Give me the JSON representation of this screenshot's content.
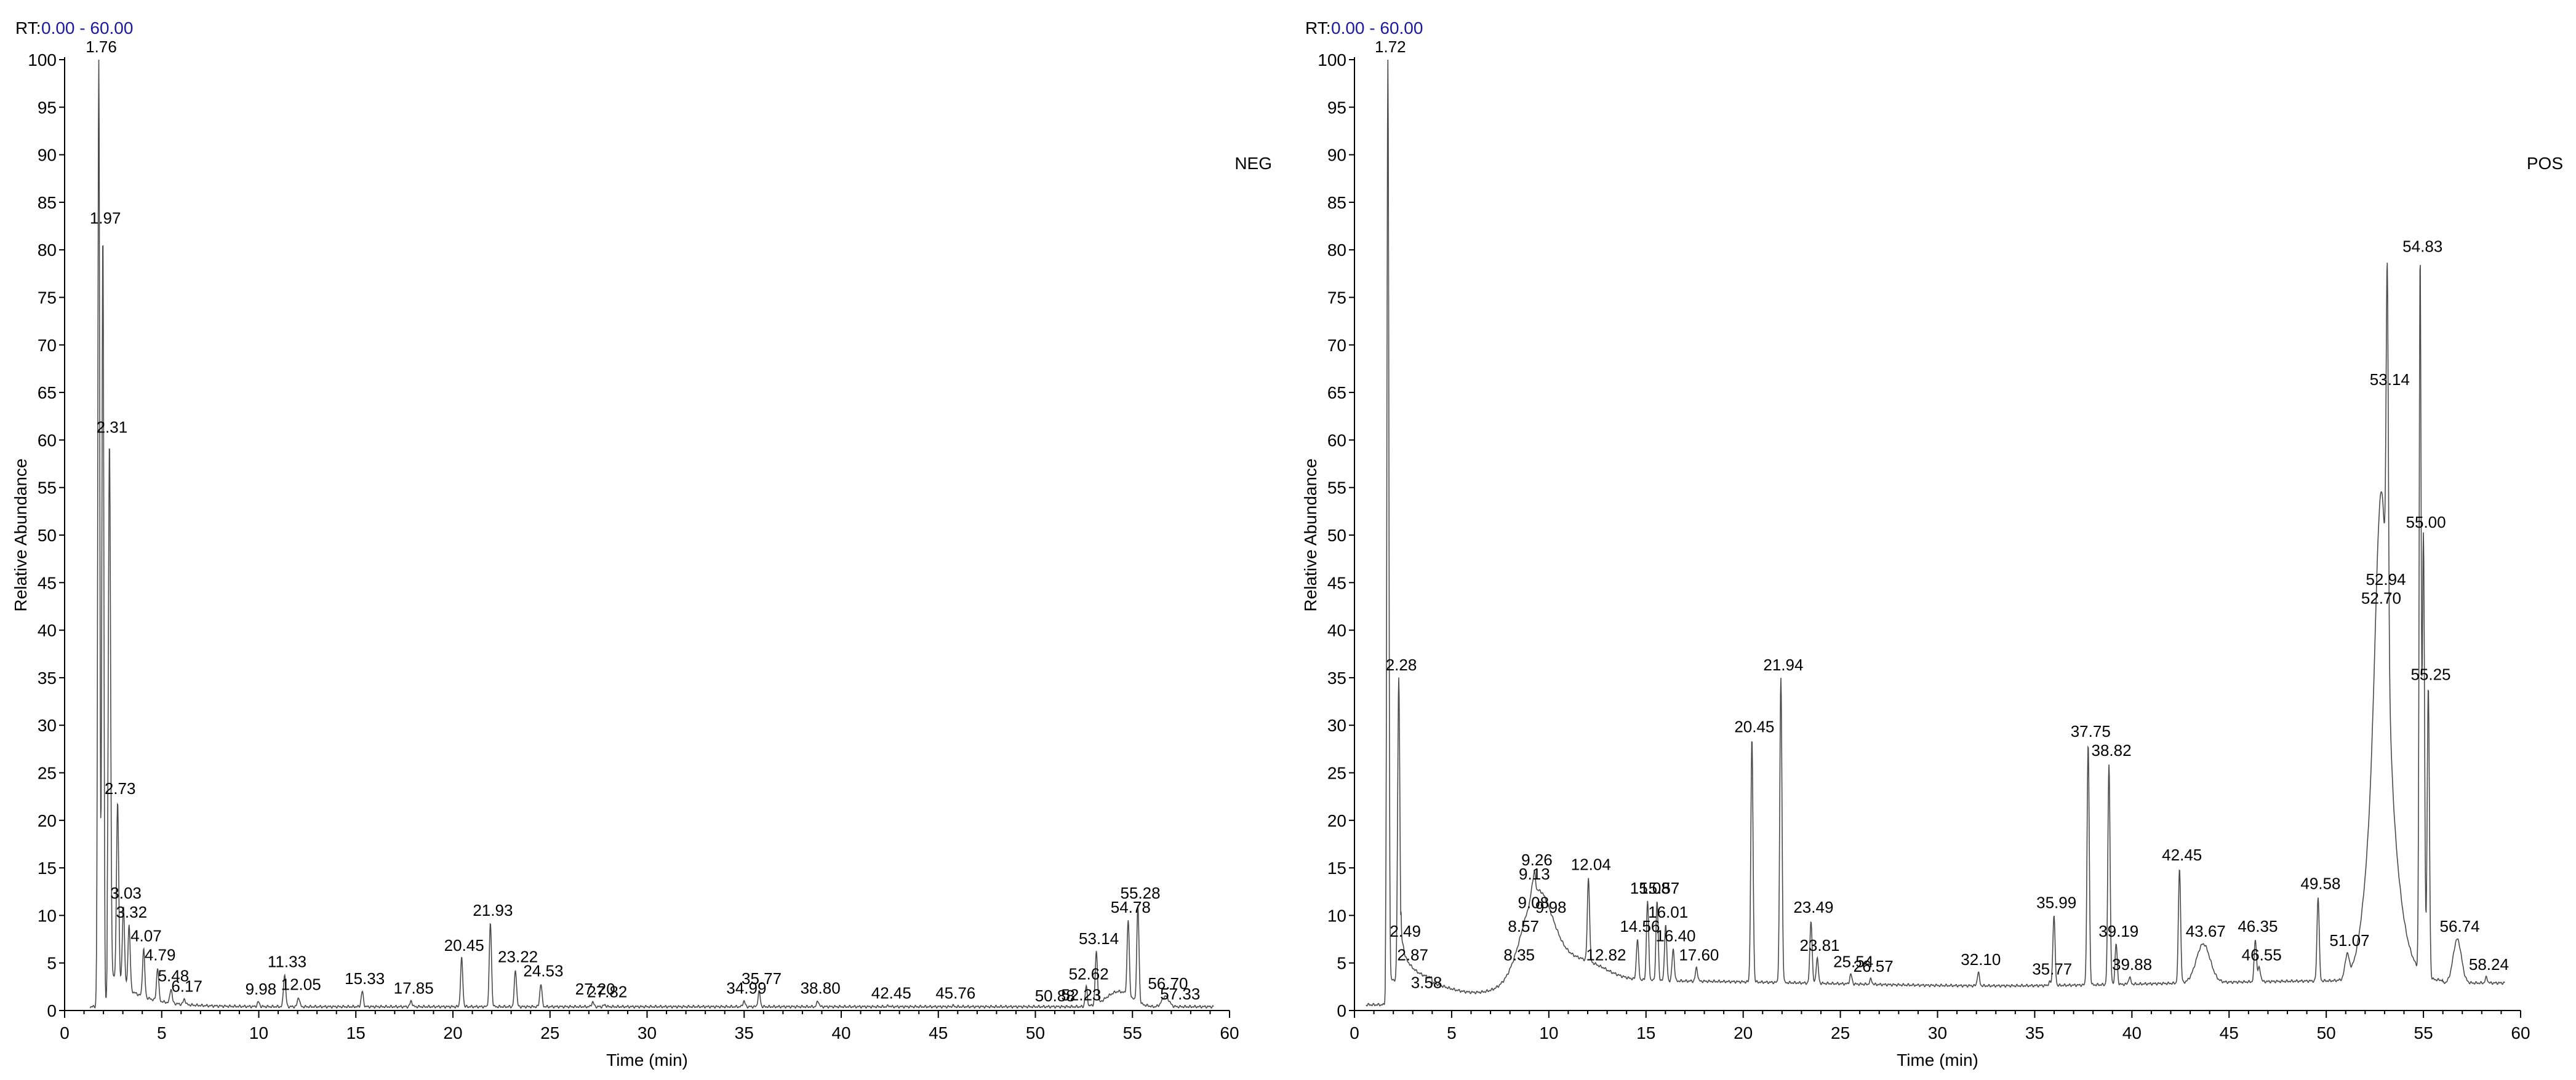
{
  "chart_data": [
    {
      "type": "line",
      "rt_label": "RT:",
      "rt_range": "0.00 - 60.00",
      "mode_label": "NEG",
      "xlabel": "Time (min)",
      "ylabel": "Relative Abundance",
      "xlim": [
        0,
        60
      ],
      "ylim": [
        0,
        100
      ],
      "x_ticks": [
        0,
        5,
        10,
        15,
        20,
        25,
        30,
        35,
        40,
        45,
        50,
        55,
        60
      ],
      "y_ticks": [
        0,
        5,
        10,
        15,
        20,
        25,
        30,
        35,
        40,
        45,
        50,
        55,
        60,
        65,
        70,
        75,
        80,
        85,
        90,
        95,
        100
      ],
      "color": "#4a4a4a",
      "peaks": [
        {
          "x": 1.76,
          "y": 100,
          "w": 0.07,
          "label": "1.76"
        },
        {
          "x": 1.97,
          "y": 82,
          "w": 0.07,
          "label": "1.97"
        },
        {
          "x": 2.31,
          "y": 60,
          "w": 0.08,
          "label": "2.31"
        },
        {
          "x": 2.73,
          "y": 22,
          "w": 0.08,
          "label": "2.73"
        },
        {
          "x": 3.03,
          "y": 11,
          "w": 0.08,
          "label": "3.03"
        },
        {
          "x": 3.32,
          "y": 9,
          "w": 0.08,
          "label": "3.32"
        },
        {
          "x": 4.07,
          "y": 6.5,
          "w": 0.08,
          "label": "4.07"
        },
        {
          "x": 4.79,
          "y": 4.5,
          "w": 0.08,
          "label": "4.79"
        },
        {
          "x": 5.48,
          "y": 2.3,
          "w": 0.08,
          "label": "5.48"
        },
        {
          "x": 6.17,
          "y": 1.2,
          "w": 0.08,
          "label": "6.17"
        },
        {
          "x": 9.98,
          "y": 0.9,
          "w": 0.08,
          "label": "9.98"
        },
        {
          "x": 11.33,
          "y": 3.8,
          "w": 0.08,
          "label": "11.33"
        },
        {
          "x": 12.05,
          "y": 1.4,
          "w": 0.08,
          "label": "12.05"
        },
        {
          "x": 15.33,
          "y": 2.0,
          "w": 0.08,
          "label": "15.33"
        },
        {
          "x": 17.85,
          "y": 1.0,
          "w": 0.08,
          "label": "17.85"
        },
        {
          "x": 20.45,
          "y": 5.5,
          "w": 0.08,
          "label": "20.45"
        },
        {
          "x": 21.93,
          "y": 9.2,
          "w": 0.08,
          "label": "21.93"
        },
        {
          "x": 23.22,
          "y": 4.3,
          "w": 0.08,
          "label": "23.22"
        },
        {
          "x": 24.53,
          "y": 2.8,
          "w": 0.08,
          "label": "24.53"
        },
        {
          "x": 27.2,
          "y": 0.9,
          "w": 0.08,
          "label": "27.20"
        },
        {
          "x": 27.82,
          "y": 0.6,
          "w": 0.08,
          "label": "27.82"
        },
        {
          "x": 34.99,
          "y": 1.0,
          "w": 0.08,
          "label": "34.99"
        },
        {
          "x": 35.77,
          "y": 2.0,
          "w": 0.08,
          "label": "35.77"
        },
        {
          "x": 38.8,
          "y": 1.0,
          "w": 0.08,
          "label": "38.80"
        },
        {
          "x": 42.45,
          "y": 0.5,
          "w": 0.08,
          "label": "42.45"
        },
        {
          "x": 45.76,
          "y": 0.5,
          "w": 0.08,
          "label": "45.76"
        },
        {
          "x": 50.88,
          "y": 0.2,
          "w": 0.08,
          "label": "50.88"
        },
        {
          "x": 52.23,
          "y": 0.3,
          "w": 0.08,
          "label": "52.23"
        },
        {
          "x": 52.62,
          "y": 2.5,
          "w": 0.08,
          "label": "52.62"
        },
        {
          "x": 53.14,
          "y": 6.2,
          "w": 0.08,
          "label": "53.14"
        },
        {
          "x": 54.78,
          "y": 9.5,
          "w": 0.08,
          "label": "54.78"
        },
        {
          "x": 55.28,
          "y": 11.0,
          "w": 0.08,
          "label": "55.28"
        },
        {
          "x": 56.7,
          "y": 1.5,
          "w": 0.25,
          "label": "56.70"
        },
        {
          "x": 57.33,
          "y": 0.4,
          "w": 0.08,
          "label": "57.33"
        }
      ]
    },
    {
      "type": "line",
      "rt_label": "RT:",
      "rt_range": "0.00 - 60.00",
      "mode_label": "POS",
      "xlabel": "Time (min)",
      "ylabel": "Relative Abundance",
      "xlim": [
        0,
        60
      ],
      "ylim": [
        0,
        100
      ],
      "x_ticks": [
        0,
        5,
        10,
        15,
        20,
        25,
        30,
        35,
        40,
        45,
        50,
        55,
        60
      ],
      "y_ticks": [
        0,
        5,
        10,
        15,
        20,
        25,
        30,
        35,
        40,
        45,
        50,
        55,
        60,
        65,
        70,
        75,
        80,
        85,
        90,
        95,
        100
      ],
      "color": "#4a4a4a",
      "peaks": [
        {
          "x": 1.72,
          "y": 100,
          "w": 0.07,
          "label": "1.72"
        },
        {
          "x": 2.28,
          "y": 35,
          "w": 0.08,
          "label": "2.28"
        },
        {
          "x": 2.49,
          "y": 7,
          "w": 0.08,
          "label": "2.49"
        },
        {
          "x": 2.87,
          "y": 4.5,
          "w": 0.08,
          "label": "2.87"
        },
        {
          "x": 3.58,
          "y": 1.6,
          "w": 0.08,
          "label": "3.58"
        },
        {
          "x": 8.35,
          "y": 4.5,
          "w": 0.08,
          "label": "8.35"
        },
        {
          "x": 8.57,
          "y": 7.5,
          "w": 0.08,
          "label": "8.57"
        },
        {
          "x": 9.08,
          "y": 10,
          "w": 0.08,
          "label": "9.08"
        },
        {
          "x": 9.13,
          "y": 13,
          "w": 0.08,
          "label": "9.13"
        },
        {
          "x": 9.26,
          "y": 14.5,
          "w": 0.08,
          "label": "9.26"
        },
        {
          "x": 9.98,
          "y": 9.5,
          "w": 0.08,
          "label": "9.98"
        },
        {
          "x": 12.04,
          "y": 14,
          "w": 0.08,
          "label": "12.04"
        },
        {
          "x": 12.82,
          "y": 4.5,
          "w": 0.08,
          "label": "12.82"
        },
        {
          "x": 14.56,
          "y": 7.5,
          "w": 0.08,
          "label": "14.56"
        },
        {
          "x": 15.08,
          "y": 11.5,
          "w": 0.08,
          "label": "15.08"
        },
        {
          "x": 15.57,
          "y": 11.5,
          "w": 0.08,
          "label": "15.57"
        },
        {
          "x": 16.01,
          "y": 9,
          "w": 0.08,
          "label": "16.01"
        },
        {
          "x": 16.4,
          "y": 6.5,
          "w": 0.08,
          "label": "16.40"
        },
        {
          "x": 17.6,
          "y": 4.5,
          "w": 0.08,
          "label": "17.60"
        },
        {
          "x": 20.45,
          "y": 28.5,
          "w": 0.08,
          "label": "20.45"
        },
        {
          "x": 21.94,
          "y": 35,
          "w": 0.08,
          "label": "21.94"
        },
        {
          "x": 23.49,
          "y": 9.5,
          "w": 0.08,
          "label": "23.49"
        },
        {
          "x": 23.81,
          "y": 5.5,
          "w": 0.08,
          "label": "23.81"
        },
        {
          "x": 25.54,
          "y": 3.8,
          "w": 0.08,
          "label": "25.54"
        },
        {
          "x": 26.57,
          "y": 3.3,
          "w": 0.08,
          "label": "26.57"
        },
        {
          "x": 32.1,
          "y": 4,
          "w": 0.08,
          "label": "32.10"
        },
        {
          "x": 35.77,
          "y": 3,
          "w": 0.08,
          "label": "35.77"
        },
        {
          "x": 35.99,
          "y": 10,
          "w": 0.08,
          "label": "35.99"
        },
        {
          "x": 37.75,
          "y": 28,
          "w": 0.08,
          "label": "37.75"
        },
        {
          "x": 38.82,
          "y": 26,
          "w": 0.08,
          "label": "38.82"
        },
        {
          "x": 39.19,
          "y": 7,
          "w": 0.08,
          "label": "39.19"
        },
        {
          "x": 39.88,
          "y": 3.5,
          "w": 0.08,
          "label": "39.88"
        },
        {
          "x": 42.45,
          "y": 15,
          "w": 0.08,
          "label": "42.45"
        },
        {
          "x": 43.67,
          "y": 7,
          "w": 0.5,
          "label": "43.67"
        },
        {
          "x": 46.35,
          "y": 7.5,
          "w": 0.08,
          "label": "46.35"
        },
        {
          "x": 46.55,
          "y": 4.5,
          "w": 0.1,
          "label": "46.55"
        },
        {
          "x": 49.58,
          "y": 12,
          "w": 0.08,
          "label": "49.58"
        },
        {
          "x": 51.07,
          "y": 6,
          "w": 0.15,
          "label": "51.07"
        },
        {
          "x": 52.7,
          "y": 42,
          "w": 0.35,
          "label": "52.70"
        },
        {
          "x": 52.94,
          "y": 44,
          "w": 0.35,
          "label": "52.94"
        },
        {
          "x": 53.14,
          "y": 65,
          "w": 0.08,
          "label": "53.14"
        },
        {
          "x": 54.83,
          "y": 79,
          "w": 0.07,
          "label": "54.83"
        },
        {
          "x": 55.0,
          "y": 50,
          "w": 0.08,
          "label": "55.00"
        },
        {
          "x": 55.25,
          "y": 34,
          "w": 0.08,
          "label": "55.25"
        },
        {
          "x": 56.74,
          "y": 7.5,
          "w": 0.3,
          "label": "56.74"
        },
        {
          "x": 58.24,
          "y": 3.5,
          "w": 0.08,
          "label": "58.24"
        }
      ]
    }
  ]
}
